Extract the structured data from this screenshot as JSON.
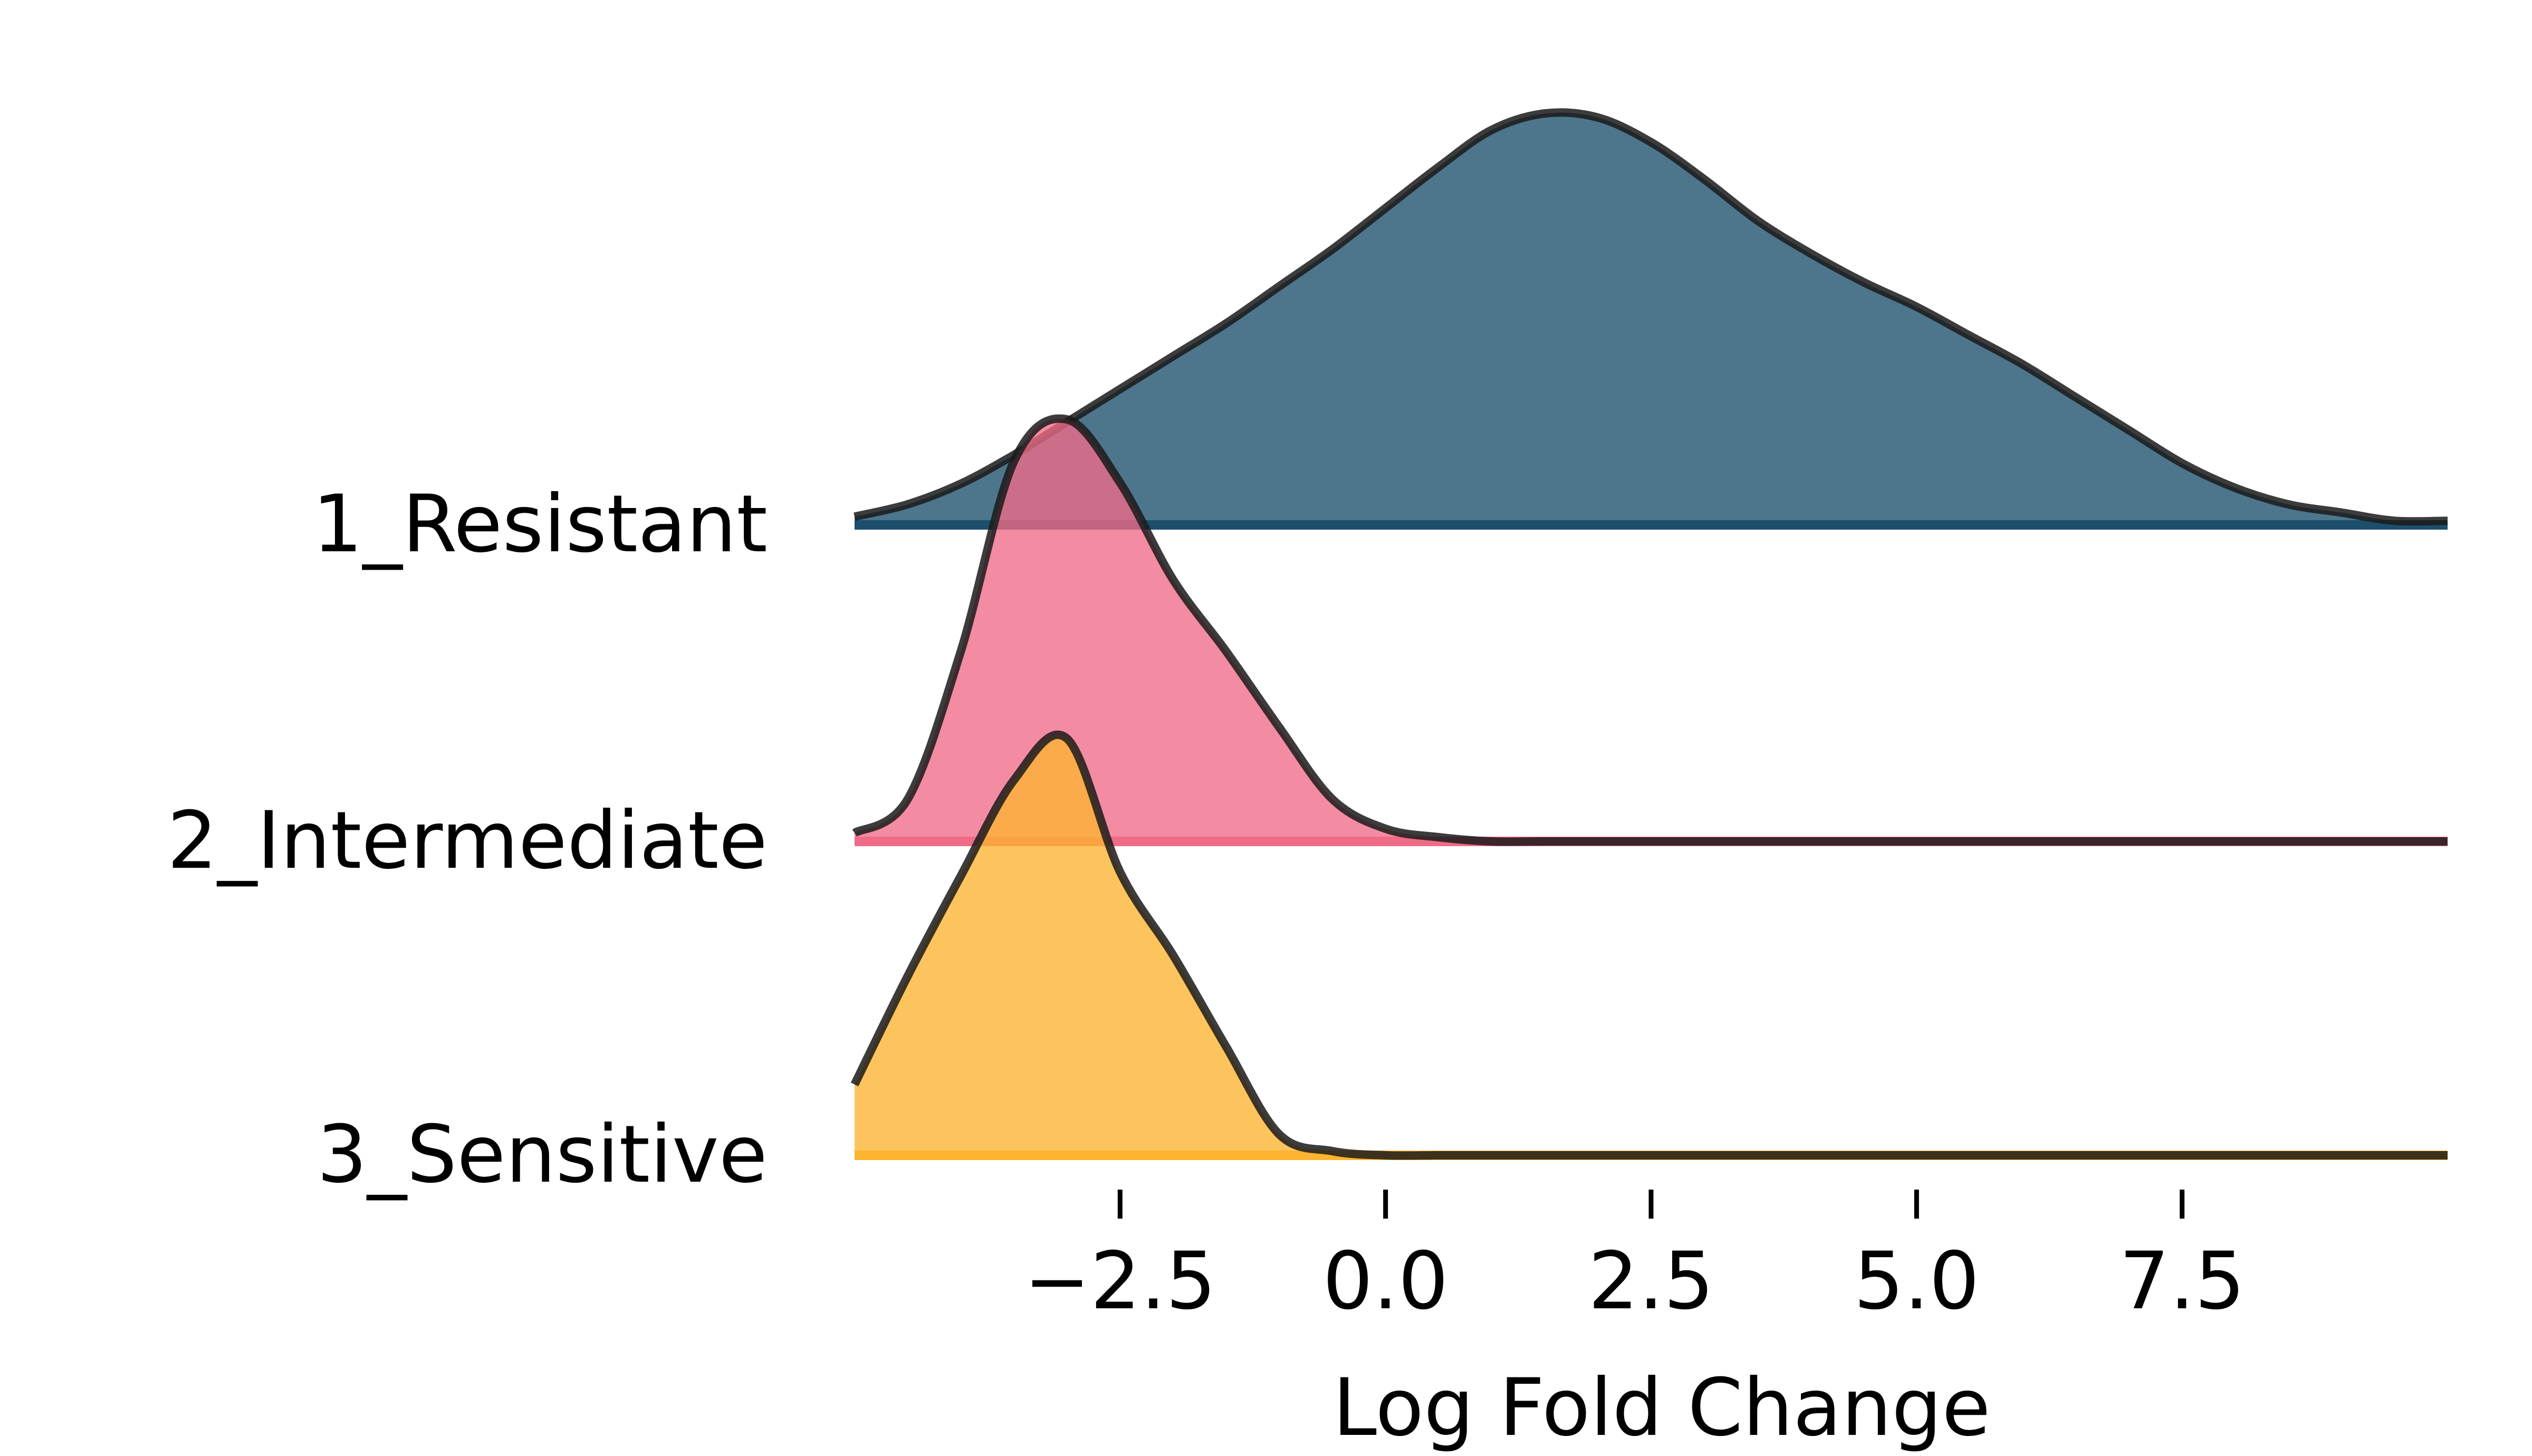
{
  "chart_data": {
    "type": "area",
    "subtype": "ridgeline",
    "title": "",
    "xlabel": "Log Fold Change",
    "ylabel": "",
    "xlim": [
      -5,
      10
    ],
    "x_ticks": [
      -2.5,
      0.0,
      2.5,
      5.0,
      7.5
    ],
    "x_tick_labels": [
      "−2.5",
      "0.0",
      "2.5",
      "5.0",
      "7.5"
    ],
    "grid": false,
    "legend": "none",
    "x": [
      -5.0,
      -4.5,
      -4.0,
      -3.5,
      -3.0,
      -2.5,
      -2.0,
      -1.5,
      -1.0,
      -0.5,
      0.0,
      0.5,
      1.0,
      1.5,
      2.0,
      2.5,
      3.0,
      3.5,
      4.0,
      4.5,
      5.0,
      5.5,
      6.0,
      6.5,
      7.0,
      7.5,
      8.0,
      8.5,
      9.0,
      9.5,
      10.0
    ],
    "series": [
      {
        "name": "1_Resistant",
        "color": "#1b4f6b",
        "values": [
          0.02,
          0.05,
          0.1,
          0.17,
          0.25,
          0.33,
          0.41,
          0.49,
          0.58,
          0.67,
          0.77,
          0.87,
          0.96,
          1.0,
          0.99,
          0.93,
          0.84,
          0.74,
          0.66,
          0.59,
          0.53,
          0.46,
          0.39,
          0.31,
          0.23,
          0.15,
          0.09,
          0.05,
          0.03,
          0.01,
          0.01
        ]
      },
      {
        "name": "2_Intermediate",
        "color": "#ef6b88",
        "values": [
          0.02,
          0.1,
          0.45,
          0.9,
          1.0,
          0.85,
          0.62,
          0.45,
          0.27,
          0.1,
          0.03,
          0.01,
          0.0,
          0.0,
          0.0,
          0.0,
          0.0,
          0.0,
          0.0,
          0.0,
          0.0,
          0.0,
          0.0,
          0.0,
          0.0,
          0.0,
          0.0,
          0.0,
          0.0,
          0.0,
          0.0
        ]
      },
      {
        "name": "3_Sensitive",
        "color": "#fdb42f",
        "values": [
          0.17,
          0.43,
          0.67,
          0.9,
          1.0,
          0.68,
          0.48,
          0.26,
          0.05,
          0.01,
          0.0,
          0.0,
          0.0,
          0.0,
          0.0,
          0.0,
          0.0,
          0.0,
          0.0,
          0.0,
          0.0,
          0.0,
          0.0,
          0.0,
          0.0,
          0.0,
          0.0,
          0.0,
          0.0,
          0.0,
          0.0
        ]
      }
    ]
  }
}
